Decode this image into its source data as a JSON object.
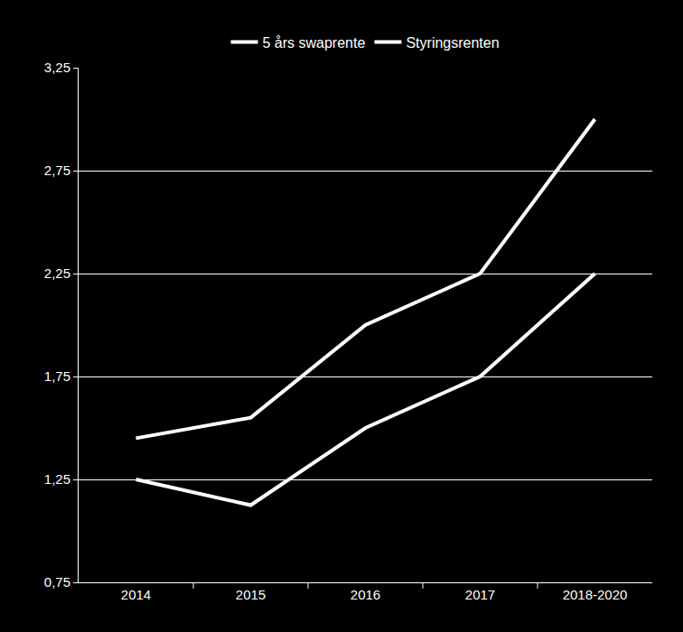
{
  "chart_data": {
    "type": "line",
    "categories": [
      "2014",
      "2015",
      "2016",
      "2017",
      "2018-2020"
    ],
    "series": [
      {
        "name": "5 års swaprente",
        "color": "#ffffff",
        "values": [
          1.45,
          1.55,
          2.0,
          2.25,
          3.0
        ]
      },
      {
        "name": "Styringsrenten",
        "color": "#ffffff",
        "values": [
          1.25,
          1.125,
          1.5,
          1.75,
          2.25
        ]
      }
    ],
    "ylim": [
      0.75,
      3.25
    ],
    "yticks": [
      {
        "value": 0.75,
        "label": "0,75"
      },
      {
        "value": 1.25,
        "label": "1,25"
      },
      {
        "value": 1.75,
        "label": "1,75"
      },
      {
        "value": 2.25,
        "label": "2,25"
      },
      {
        "value": 2.75,
        "label": "2,75"
      },
      {
        "value": 3.25,
        "label": "3,25"
      }
    ],
    "grid": true,
    "legend": "top"
  }
}
